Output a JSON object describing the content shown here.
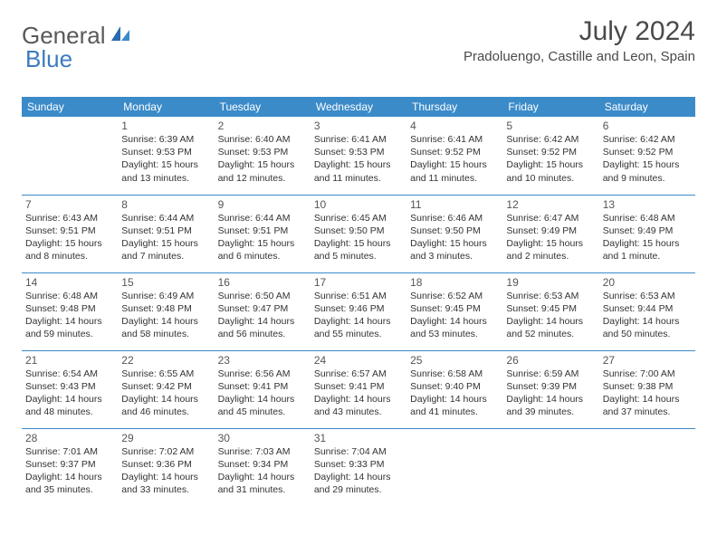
{
  "brand": {
    "text1": "General",
    "text2": "Blue"
  },
  "title": "July 2024",
  "location": "Pradoluengo, Castille and Leon, Spain",
  "colors": {
    "header_bg": "#3b8bc9",
    "header_text": "#ffffff",
    "divider": "#3b8bc9",
    "text": "#333333",
    "logo_gray": "#5a5a5a",
    "logo_blue": "#3b7bbf",
    "background": "#ffffff"
  },
  "day_headers": [
    "Sunday",
    "Monday",
    "Tuesday",
    "Wednesday",
    "Thursday",
    "Friday",
    "Saturday"
  ],
  "weeks": [
    [
      null,
      {
        "n": "1",
        "sr": "Sunrise: 6:39 AM",
        "ss": "Sunset: 9:53 PM",
        "dl": "Daylight: 15 hours and 13 minutes."
      },
      {
        "n": "2",
        "sr": "Sunrise: 6:40 AM",
        "ss": "Sunset: 9:53 PM",
        "dl": "Daylight: 15 hours and 12 minutes."
      },
      {
        "n": "3",
        "sr": "Sunrise: 6:41 AM",
        "ss": "Sunset: 9:53 PM",
        "dl": "Daylight: 15 hours and 11 minutes."
      },
      {
        "n": "4",
        "sr": "Sunrise: 6:41 AM",
        "ss": "Sunset: 9:52 PM",
        "dl": "Daylight: 15 hours and 11 minutes."
      },
      {
        "n": "5",
        "sr": "Sunrise: 6:42 AM",
        "ss": "Sunset: 9:52 PM",
        "dl": "Daylight: 15 hours and 10 minutes."
      },
      {
        "n": "6",
        "sr": "Sunrise: 6:42 AM",
        "ss": "Sunset: 9:52 PM",
        "dl": "Daylight: 15 hours and 9 minutes."
      }
    ],
    [
      {
        "n": "7",
        "sr": "Sunrise: 6:43 AM",
        "ss": "Sunset: 9:51 PM",
        "dl": "Daylight: 15 hours and 8 minutes."
      },
      {
        "n": "8",
        "sr": "Sunrise: 6:44 AM",
        "ss": "Sunset: 9:51 PM",
        "dl": "Daylight: 15 hours and 7 minutes."
      },
      {
        "n": "9",
        "sr": "Sunrise: 6:44 AM",
        "ss": "Sunset: 9:51 PM",
        "dl": "Daylight: 15 hours and 6 minutes."
      },
      {
        "n": "10",
        "sr": "Sunrise: 6:45 AM",
        "ss": "Sunset: 9:50 PM",
        "dl": "Daylight: 15 hours and 5 minutes."
      },
      {
        "n": "11",
        "sr": "Sunrise: 6:46 AM",
        "ss": "Sunset: 9:50 PM",
        "dl": "Daylight: 15 hours and 3 minutes."
      },
      {
        "n": "12",
        "sr": "Sunrise: 6:47 AM",
        "ss": "Sunset: 9:49 PM",
        "dl": "Daylight: 15 hours and 2 minutes."
      },
      {
        "n": "13",
        "sr": "Sunrise: 6:48 AM",
        "ss": "Sunset: 9:49 PM",
        "dl": "Daylight: 15 hours and 1 minute."
      }
    ],
    [
      {
        "n": "14",
        "sr": "Sunrise: 6:48 AM",
        "ss": "Sunset: 9:48 PM",
        "dl": "Daylight: 14 hours and 59 minutes."
      },
      {
        "n": "15",
        "sr": "Sunrise: 6:49 AM",
        "ss": "Sunset: 9:48 PM",
        "dl": "Daylight: 14 hours and 58 minutes."
      },
      {
        "n": "16",
        "sr": "Sunrise: 6:50 AM",
        "ss": "Sunset: 9:47 PM",
        "dl": "Daylight: 14 hours and 56 minutes."
      },
      {
        "n": "17",
        "sr": "Sunrise: 6:51 AM",
        "ss": "Sunset: 9:46 PM",
        "dl": "Daylight: 14 hours and 55 minutes."
      },
      {
        "n": "18",
        "sr": "Sunrise: 6:52 AM",
        "ss": "Sunset: 9:45 PM",
        "dl": "Daylight: 14 hours and 53 minutes."
      },
      {
        "n": "19",
        "sr": "Sunrise: 6:53 AM",
        "ss": "Sunset: 9:45 PM",
        "dl": "Daylight: 14 hours and 52 minutes."
      },
      {
        "n": "20",
        "sr": "Sunrise: 6:53 AM",
        "ss": "Sunset: 9:44 PM",
        "dl": "Daylight: 14 hours and 50 minutes."
      }
    ],
    [
      {
        "n": "21",
        "sr": "Sunrise: 6:54 AM",
        "ss": "Sunset: 9:43 PM",
        "dl": "Daylight: 14 hours and 48 minutes."
      },
      {
        "n": "22",
        "sr": "Sunrise: 6:55 AM",
        "ss": "Sunset: 9:42 PM",
        "dl": "Daylight: 14 hours and 46 minutes."
      },
      {
        "n": "23",
        "sr": "Sunrise: 6:56 AM",
        "ss": "Sunset: 9:41 PM",
        "dl": "Daylight: 14 hours and 45 minutes."
      },
      {
        "n": "24",
        "sr": "Sunrise: 6:57 AM",
        "ss": "Sunset: 9:41 PM",
        "dl": "Daylight: 14 hours and 43 minutes."
      },
      {
        "n": "25",
        "sr": "Sunrise: 6:58 AM",
        "ss": "Sunset: 9:40 PM",
        "dl": "Daylight: 14 hours and 41 minutes."
      },
      {
        "n": "26",
        "sr": "Sunrise: 6:59 AM",
        "ss": "Sunset: 9:39 PM",
        "dl": "Daylight: 14 hours and 39 minutes."
      },
      {
        "n": "27",
        "sr": "Sunrise: 7:00 AM",
        "ss": "Sunset: 9:38 PM",
        "dl": "Daylight: 14 hours and 37 minutes."
      }
    ],
    [
      {
        "n": "28",
        "sr": "Sunrise: 7:01 AM",
        "ss": "Sunset: 9:37 PM",
        "dl": "Daylight: 14 hours and 35 minutes."
      },
      {
        "n": "29",
        "sr": "Sunrise: 7:02 AM",
        "ss": "Sunset: 9:36 PM",
        "dl": "Daylight: 14 hours and 33 minutes."
      },
      {
        "n": "30",
        "sr": "Sunrise: 7:03 AM",
        "ss": "Sunset: 9:34 PM",
        "dl": "Daylight: 14 hours and 31 minutes."
      },
      {
        "n": "31",
        "sr": "Sunrise: 7:04 AM",
        "ss": "Sunset: 9:33 PM",
        "dl": "Daylight: 14 hours and 29 minutes."
      },
      null,
      null,
      null
    ]
  ]
}
